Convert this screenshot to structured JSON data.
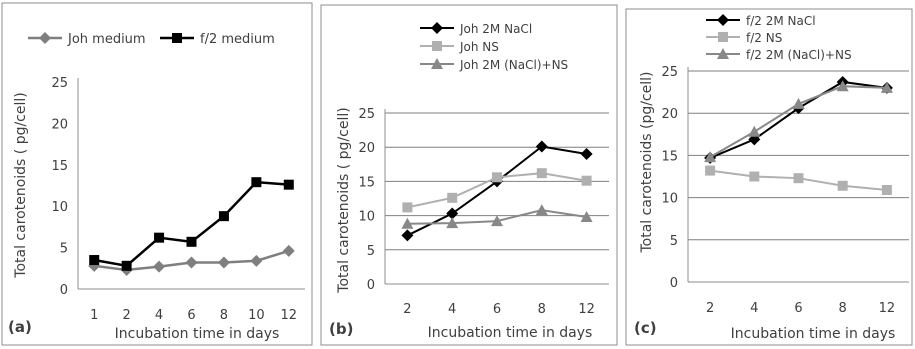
{
  "chart_data": [
    {
      "type": "line",
      "panel_label": "(a)",
      "categories": [
        "1",
        "2",
        "4",
        "6",
        "8",
        "10",
        "12"
      ],
      "series": [
        {
          "name": "Joh medium",
          "values": [
            2.8,
            2.3,
            2.7,
            3.2,
            3.2,
            3.4,
            4.6
          ],
          "color": "#7f7f7f",
          "marker": "diamond"
        },
        {
          "name": "f/2 medium",
          "values": [
            3.5,
            2.8,
            6.2,
            5.7,
            8.8,
            12.9,
            12.6
          ],
          "color": "#000000",
          "marker": "square"
        }
      ],
      "ylabel": "Total carotenoids ( pg/cell)",
      "xlabel": "Incubation time  in days",
      "ylim": [
        0,
        25
      ],
      "yticks": [
        0,
        5,
        10,
        15,
        20,
        25
      ],
      "grid": false,
      "legend": "top"
    },
    {
      "type": "line",
      "panel_label": "(b)",
      "categories": [
        "2",
        "4",
        "6",
        "8",
        "12"
      ],
      "series": [
        {
          "name": "Joh 2M NaCl",
          "values": [
            7.1,
            10.3,
            15.0,
            20.1,
            19.0
          ],
          "color": "#000000",
          "marker": "diamond"
        },
        {
          "name": "Joh NS",
          "values": [
            11.2,
            12.6,
            15.6,
            16.2,
            15.1
          ],
          "color": "#b0b0b0",
          "marker": "square"
        },
        {
          "name": "Joh 2M (NaCl)+NS",
          "values": [
            8.8,
            8.9,
            9.2,
            10.8,
            9.8
          ],
          "color": "#888888",
          "marker": "triangle"
        }
      ],
      "ylabel": "Total carotenoids  ( pg/cell)",
      "xlabel": "Incubation time in days",
      "ylim": [
        0,
        25
      ],
      "yticks": [
        0,
        5,
        10,
        15,
        20,
        25
      ],
      "grid": true,
      "legend": "top"
    },
    {
      "type": "line",
      "panel_label": "(c)",
      "categories": [
        "2",
        "4",
        "6",
        "8",
        "12"
      ],
      "series": [
        {
          "name": "f/2  2M NaCl",
          "values": [
            14.7,
            16.9,
            20.6,
            23.7,
            23.0
          ],
          "color": "#000000",
          "marker": "diamond"
        },
        {
          "name": "f/2  NS",
          "values": [
            13.2,
            12.5,
            12.3,
            11.4,
            10.9
          ],
          "color": "#b0b0b0",
          "marker": "square"
        },
        {
          "name": "f/2 2M (NaCl)+NS",
          "values": [
            14.8,
            17.8,
            21.1,
            23.2,
            23.0
          ],
          "color": "#888888",
          "marker": "triangle"
        }
      ],
      "ylabel": "Total carotenoids (pg/cell)",
      "xlabel": "Incubation time in days",
      "ylim": [
        0,
        25
      ],
      "yticks": [
        0,
        5,
        10,
        15,
        20,
        25
      ],
      "grid": true,
      "legend": "top"
    }
  ]
}
